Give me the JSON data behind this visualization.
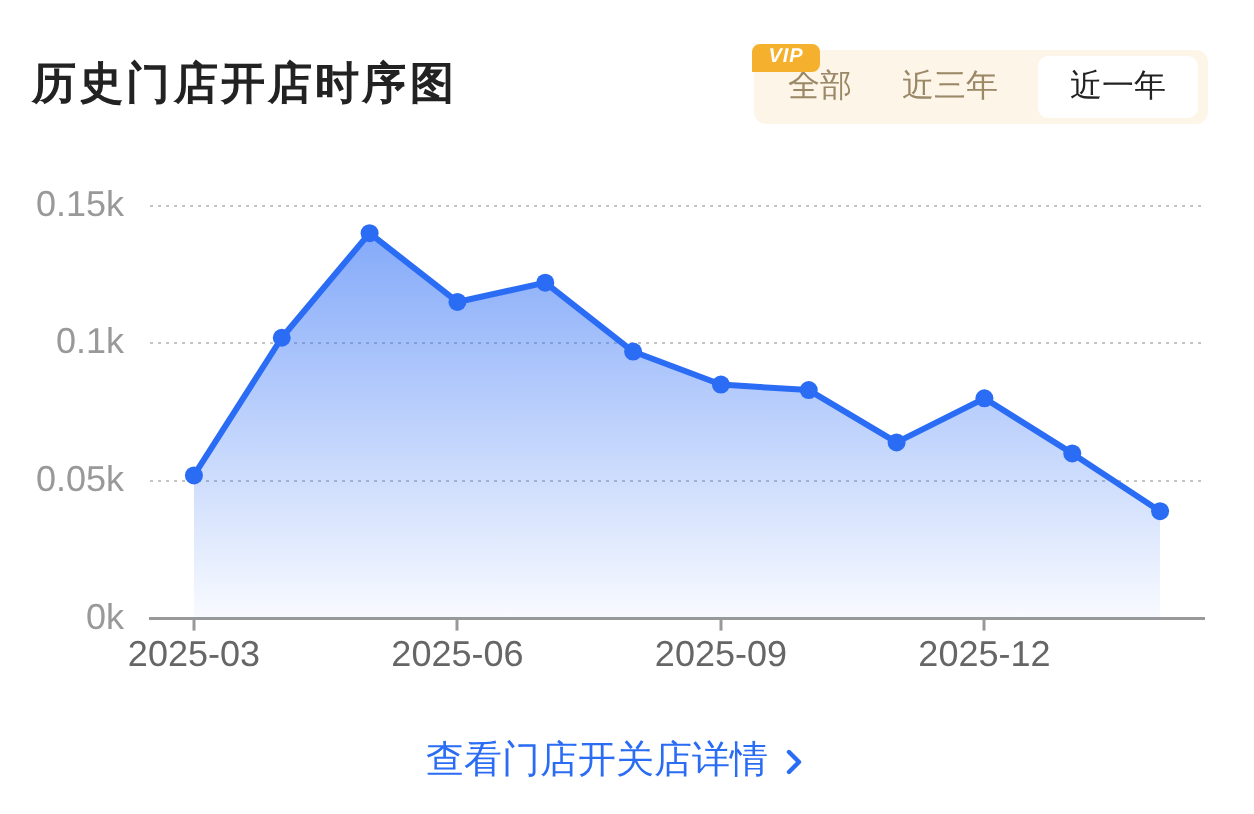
{
  "chart_data": {
    "type": "area",
    "title": "历史门店开店时序图",
    "categories": [
      "2025-03",
      null,
      null,
      "2025-06",
      null,
      null,
      "2025-09",
      null,
      null,
      "2025-12",
      null,
      null
    ],
    "values": [
      52,
      102,
      140,
      115,
      122,
      97,
      85,
      83,
      64,
      80,
      60,
      39
    ],
    "color": "#2b6cf5",
    "ylim": [
      0,
      150
    ],
    "yticks": [
      {
        "value": 0,
        "label": "0k"
      },
      {
        "value": 50,
        "label": "0.05k"
      },
      {
        "value": 100,
        "label": "0.1k"
      },
      {
        "value": 150,
        "label": "0.15k"
      }
    ],
    "grid": "y",
    "marker": "circle",
    "line_style": "solid",
    "annotations": [
      "VIP",
      "全部",
      "近三年",
      "近一年",
      "查看门店开关店详情"
    ]
  }
}
